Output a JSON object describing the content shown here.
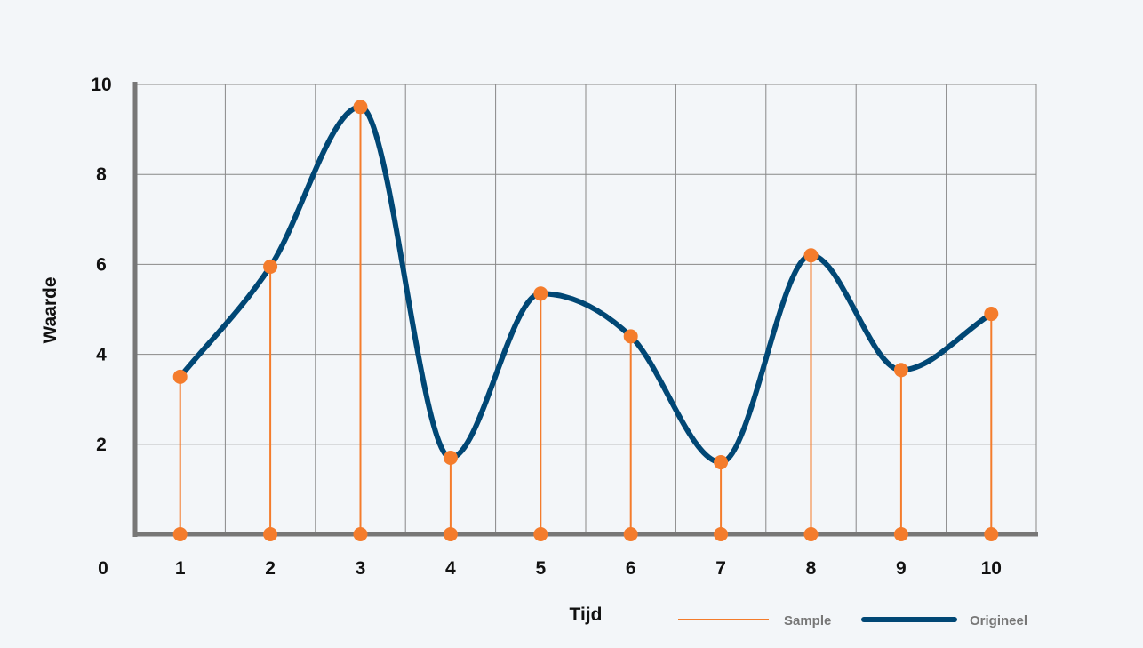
{
  "chart_data": {
    "type": "line",
    "xlabel": "Tijd",
    "ylabel": "Waarde",
    "origin_label": "0",
    "x": [
      1,
      2,
      3,
      4,
      5,
      6,
      7,
      8,
      9,
      10
    ],
    "xlim": [
      0.5,
      10.5
    ],
    "ylim": [
      0,
      10
    ],
    "yticks": [
      2,
      4,
      6,
      8,
      10
    ],
    "grid": true,
    "legend_position": "bottom-right",
    "series": [
      {
        "name": "Sample",
        "style": "stem",
        "color": "#f47c2c",
        "values": [
          3.5,
          5.95,
          9.5,
          1.7,
          5.35,
          4.4,
          1.6,
          6.2,
          3.65,
          4.9
        ]
      },
      {
        "name": "Origineel",
        "style": "smooth-line",
        "color": "#004775",
        "values": [
          3.5,
          5.95,
          9.5,
          1.7,
          5.35,
          4.4,
          1.6,
          6.2,
          3.65,
          4.9
        ]
      }
    ],
    "colors": {
      "grid": "#888888",
      "axis": "#777777",
      "background": "#f3f6f9"
    }
  }
}
